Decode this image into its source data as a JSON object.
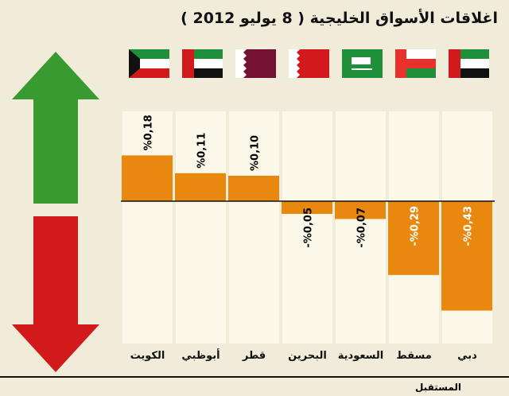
{
  "chart_data": {
    "type": "bar",
    "title": "اغلاقات الأسواق الخليجية ( 8 يوليو 2012 )",
    "categories": [
      "الكويت",
      "أبوظبي",
      "قطر",
      "البحرين",
      "السعودية",
      "مسقط",
      "دبي"
    ],
    "values": [
      0.18,
      0.11,
      0.1,
      -0.05,
      -0.07,
      -0.29,
      -0.43
    ],
    "data_labels": [
      "%0,18",
      "%0,11",
      "%0,10",
      "-%0,05",
      "-%0,07",
      "-%0,29",
      "-%0,43"
    ],
    "unit": "%",
    "xlabel": "",
    "ylabel": ""
  },
  "colors": {
    "bar": "#e8880f",
    "up": "#3a9a32",
    "down": "#d2191c",
    "column": "#fbf8ea"
  },
  "logo": "المستقبل"
}
